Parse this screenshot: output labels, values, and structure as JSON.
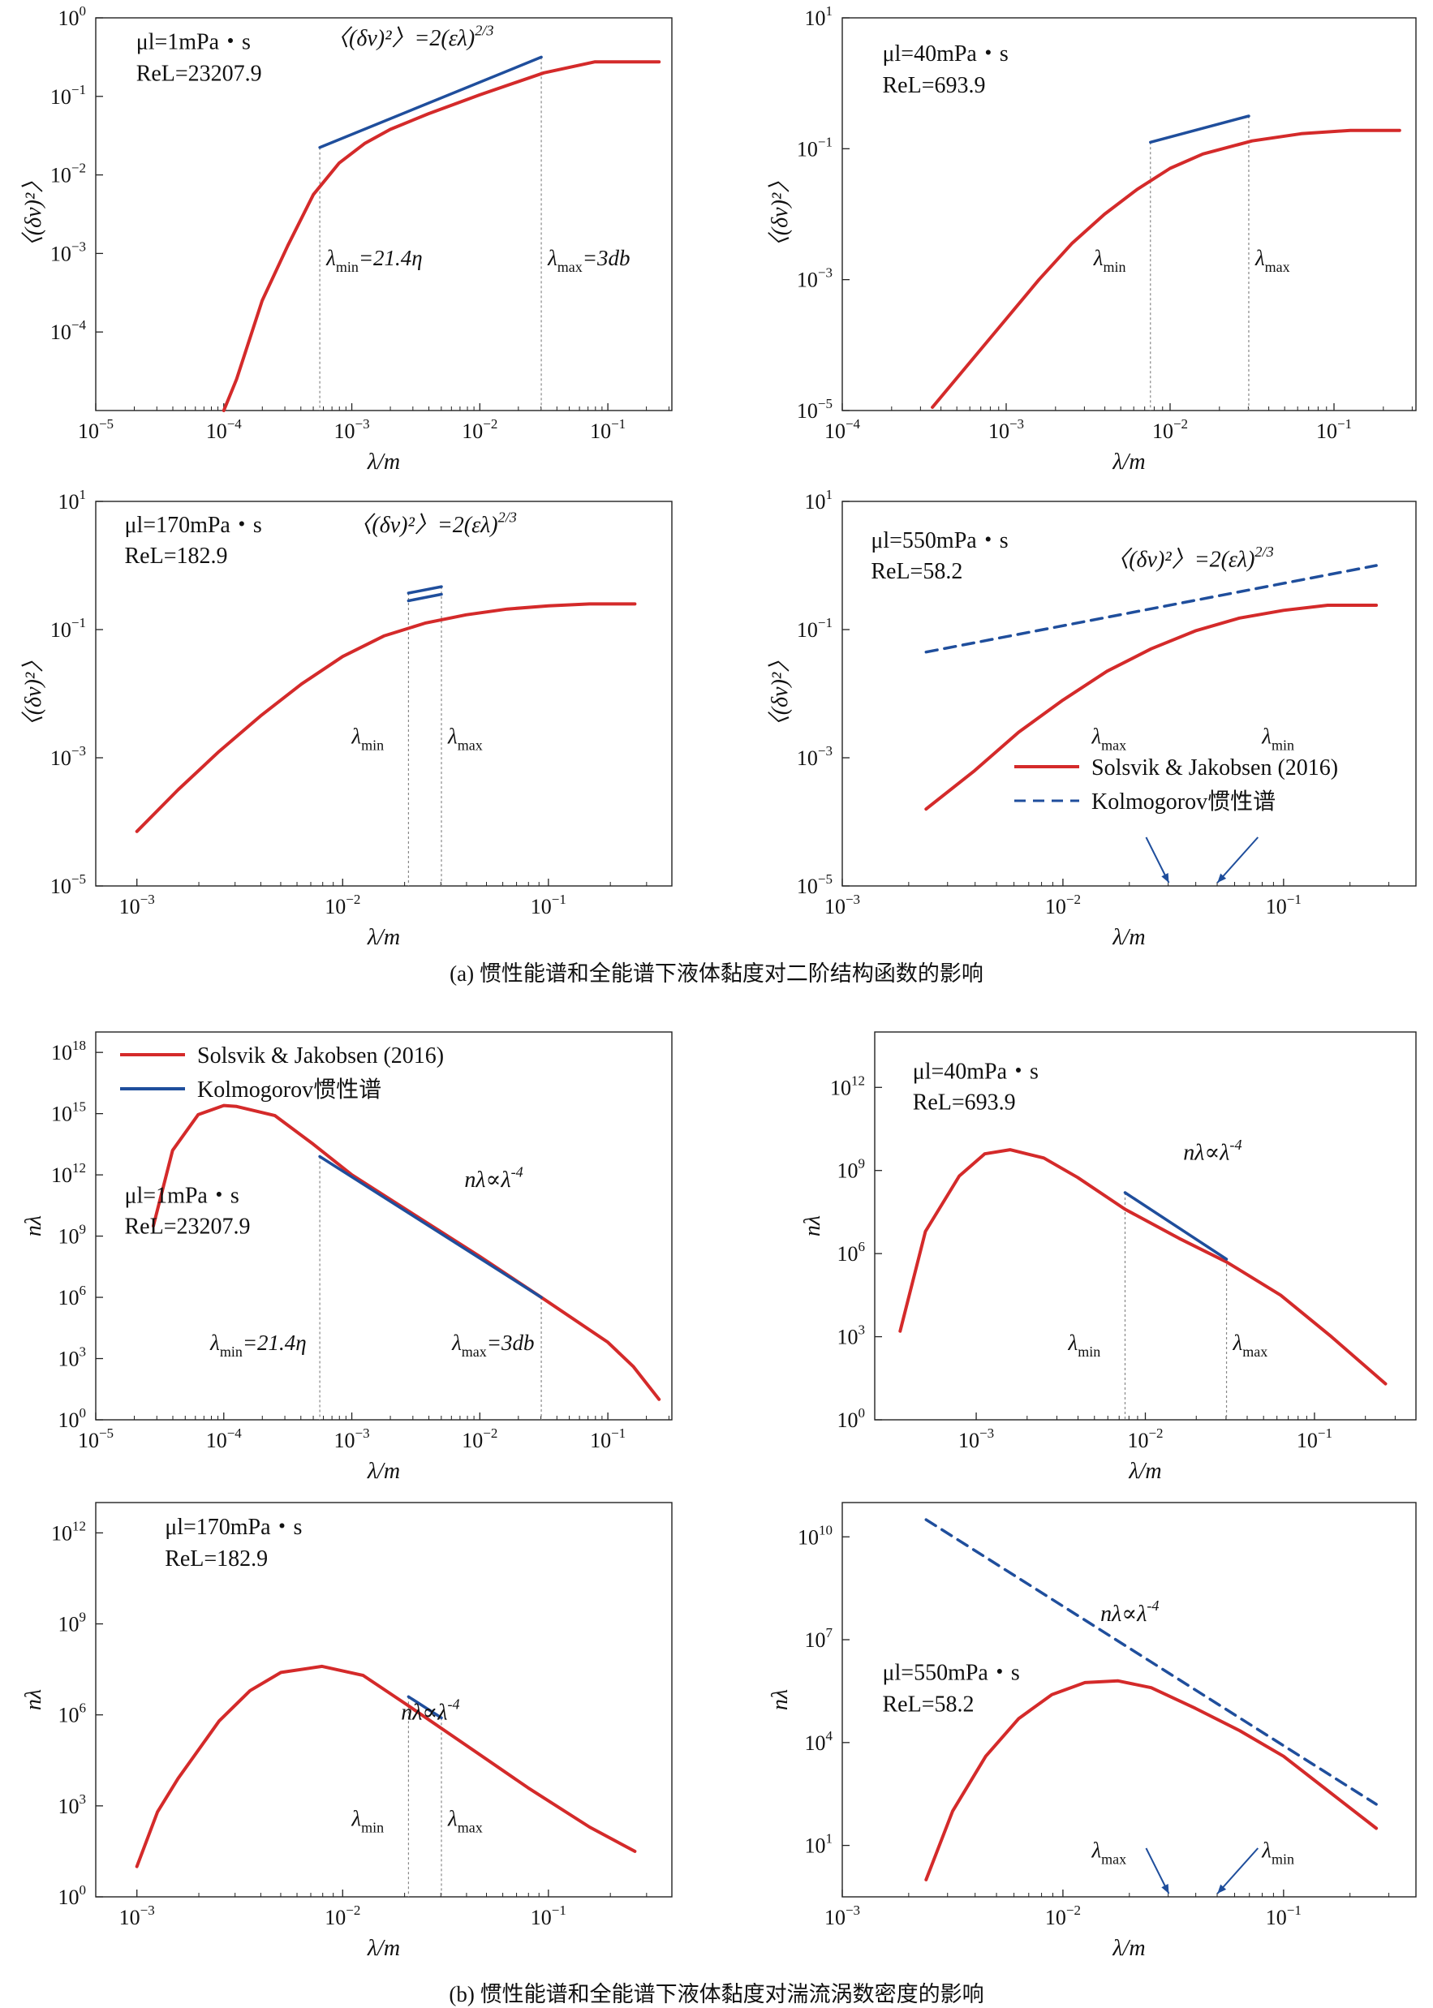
{
  "captions": {
    "a": "(a) 惯性能谱和全能谱下液体黏度对二阶结构函数的影响",
    "b": "(b) 惯性能谱和全能谱下液体黏度对湍流涡数密度的影响"
  },
  "colors": {
    "full": "#d42a2a",
    "inertial": "#1f4e9c",
    "axis": "#222222",
    "guide": "#888888"
  },
  "legend": {
    "full": "Solsvik & Jakobsen (2016)",
    "inertial": "Kolmogorov惯性谱"
  },
  "chart_data": [
    {
      "panel": "a1",
      "type": "line",
      "scale": "log-log",
      "xlabel": "λ/m",
      "ylabel": "〈(δv)²〉",
      "xlim": [
        -5,
        -0.5
      ],
      "ylim": [
        -5,
        0
      ],
      "xticks": [
        -5,
        -4,
        -3,
        -2,
        -1
      ],
      "yticks": [
        -4,
        -3,
        -2,
        -1,
        0
      ],
      "annotations": [
        "μl=1mPa・s",
        "ReL=23207.9",
        "〈(δv)²〉=2(ελ)^2/3"
      ],
      "guide_labels": [
        "λmin=21.4η",
        "λmax=3db"
      ],
      "series": [
        {
          "name": "Solsvik & Jakobsen (2016)",
          "style": "full",
          "x": [
            -4.0,
            -3.9,
            -3.7,
            -3.5,
            -3.3,
            -3.1,
            -2.9,
            -2.7,
            -2.4,
            -2.0,
            -1.5,
            -1.1,
            -0.8,
            -0.6
          ],
          "y": [
            -5.0,
            -4.6,
            -3.6,
            -2.9,
            -2.25,
            -1.85,
            -1.6,
            -1.42,
            -1.22,
            -0.98,
            -0.7,
            -0.56,
            -0.56,
            -0.56
          ]
        },
        {
          "name": "Kolmogorov惯性谱",
          "style": "inertial",
          "x": [
            -3.25,
            -1.52
          ],
          "y": [
            -1.65,
            -0.5
          ]
        }
      ],
      "guides": [
        -3.25,
        -1.52
      ]
    },
    {
      "panel": "a2",
      "type": "line",
      "scale": "log-log",
      "xlabel": "λ/m",
      "ylabel": "〈(δv)²〉",
      "xlim": [
        -4,
        -0.5
      ],
      "ylim": [
        -5,
        1
      ],
      "xticks": [
        -4,
        -3,
        -2,
        -1
      ],
      "yticks": [
        -5,
        -3,
        -1,
        1
      ],
      "annotations": [
        "μl=40mPa・s",
        "ReL=693.9"
      ],
      "guide_labels": [
        "λmin",
        "λmax"
      ],
      "series": [
        {
          "name": "Solsvik & Jakobsen (2016)",
          "style": "full",
          "x": [
            -3.45,
            -3.2,
            -3.0,
            -2.8,
            -2.6,
            -2.4,
            -2.2,
            -2.0,
            -1.8,
            -1.5,
            -1.2,
            -0.9,
            -0.6
          ],
          "y": [
            -4.95,
            -4.2,
            -3.6,
            -3.0,
            -2.45,
            -2.0,
            -1.62,
            -1.3,
            -1.08,
            -0.88,
            -0.77,
            -0.72,
            -0.72
          ]
        },
        {
          "name": "Kolmogorov惯性谱",
          "style": "inertial",
          "x": [
            -2.12,
            -1.52
          ],
          "y": [
            -0.9,
            -0.5
          ]
        }
      ],
      "guides": [
        -2.12,
        -1.52
      ]
    },
    {
      "panel": "a3",
      "type": "line",
      "scale": "log-log",
      "xlabel": "λ/m",
      "ylabel": "〈(δv)²〉",
      "xlim": [
        -3.2,
        -0.4
      ],
      "ylim": [
        -5,
        1
      ],
      "xticks": [
        -3,
        -2,
        -1
      ],
      "yticks": [
        -5,
        -3,
        -1,
        1
      ],
      "annotations": [
        "μl=170mPa・s",
        "ReL=182.9",
        "〈(δv)²〉=2(ελ)^2/3"
      ],
      "guide_labels": [
        "λmin",
        "λmax"
      ],
      "series": [
        {
          "name": "Solsvik & Jakobsen (2016)",
          "style": "full",
          "x": [
            -3.0,
            -2.8,
            -2.6,
            -2.4,
            -2.2,
            -2.0,
            -1.8,
            -1.6,
            -1.4,
            -1.2,
            -1.0,
            -0.8,
            -0.58
          ],
          "y": [
            -4.15,
            -3.5,
            -2.9,
            -2.35,
            -1.85,
            -1.42,
            -1.1,
            -0.9,
            -0.77,
            -0.68,
            -0.63,
            -0.6,
            -0.6
          ]
        },
        {
          "name": "Kolmogorov惯性谱",
          "style": "inertial",
          "x": [
            -1.68,
            -1.52
          ],
          "y": [
            -0.43,
            -0.33
          ]
        },
        {
          "name": "Kolmogorov惯性谱",
          "style": "inertial",
          "x": [
            -1.68,
            -1.52
          ],
          "y": [
            -0.55,
            -0.45
          ]
        }
      ],
      "guides": [
        -1.68,
        -1.52
      ]
    },
    {
      "panel": "a4",
      "type": "line",
      "scale": "log-log",
      "xlabel": "λ/m",
      "ylabel": "〈(δv)²〉",
      "xlim": [
        -3,
        -0.4
      ],
      "ylim": [
        -5,
        1
      ],
      "xticks": [
        -3,
        -2,
        -1
      ],
      "yticks": [
        -5,
        -3,
        -1,
        1
      ],
      "annotations": [
        "μl=550mPa・s",
        "ReL=58.2",
        "〈(δv)²〉=2(ελ)^2/3"
      ],
      "guide_labels": [
        "λmax",
        "λmin"
      ],
      "series": [
        {
          "name": "Solsvik & Jakobsen (2016)",
          "style": "full",
          "x": [
            -2.62,
            -2.4,
            -2.2,
            -2.0,
            -1.8,
            -1.6,
            -1.4,
            -1.2,
            -1.0,
            -0.8,
            -0.58
          ],
          "y": [
            -3.8,
            -3.2,
            -2.6,
            -2.1,
            -1.65,
            -1.3,
            -1.02,
            -0.82,
            -0.7,
            -0.62,
            -0.62
          ]
        },
        {
          "name": "Kolmogorov惯性谱",
          "style": "inertial-dashed",
          "x": [
            -2.62,
            -0.58
          ],
          "y": [
            -1.35,
            0.0
          ]
        }
      ],
      "arrows": [
        -1.52,
        -1.3
      ]
    },
    {
      "panel": "b1",
      "type": "line",
      "scale": "log-log",
      "xlabel": "λ/m",
      "ylabel": "nλ",
      "xlim": [
        -5,
        -0.5
      ],
      "ylim": [
        0,
        19
      ],
      "xticks": [
        -5,
        -4,
        -3,
        -2,
        -1
      ],
      "yticks": [
        0,
        3,
        6,
        9,
        12,
        15,
        18
      ],
      "annotations": [
        "μl=1mPa・s",
        "ReL=23207.9",
        "nλ∝λ^-4"
      ],
      "guide_labels": [
        "λmin=21.4η",
        "λmax=3db"
      ],
      "series": [
        {
          "name": "Solsvik & Jakobsen (2016)",
          "style": "full",
          "x": [
            -4.55,
            -4.4,
            -4.2,
            -4.0,
            -3.9,
            -3.6,
            -3.3,
            -3.0,
            -2.5,
            -2.0,
            -1.52,
            -1.0,
            -0.8,
            -0.6
          ],
          "y": [
            9.5,
            13.2,
            14.95,
            15.4,
            15.35,
            14.9,
            13.5,
            12.0,
            10.0,
            8.0,
            6.0,
            3.8,
            2.6,
            1.0
          ]
        },
        {
          "name": "Kolmogorov惯性谱",
          "style": "inertial",
          "x": [
            -3.25,
            -1.52
          ],
          "y": [
            12.9,
            6.0
          ]
        }
      ],
      "guides": [
        -3.25,
        -1.52
      ]
    },
    {
      "panel": "b2",
      "type": "line",
      "scale": "log-log",
      "xlabel": "λ/m",
      "ylabel": "nλ",
      "xlim": [
        -3.6,
        -0.4
      ],
      "ylim": [
        0,
        14
      ],
      "xticks": [
        -3,
        -2,
        -1
      ],
      "yticks": [
        0,
        3,
        6,
        9,
        12
      ],
      "annotations": [
        "μl=40mPa・s",
        "ReL=693.9",
        "nλ∝λ^-4"
      ],
      "guide_labels": [
        "λmin",
        "λmax"
      ],
      "series": [
        {
          "name": "Solsvik & Jakobsen (2016)",
          "style": "full",
          "x": [
            -3.45,
            -3.3,
            -3.1,
            -2.95,
            -2.8,
            -2.6,
            -2.4,
            -2.12,
            -1.8,
            -1.52,
            -1.2,
            -0.9,
            -0.58
          ],
          "y": [
            3.2,
            6.8,
            8.8,
            9.6,
            9.75,
            9.45,
            8.75,
            7.6,
            6.55,
            5.7,
            4.5,
            3.0,
            1.3
          ]
        },
        {
          "name": "Kolmogorov惯性谱",
          "style": "inertial",
          "x": [
            -2.12,
            -1.52
          ],
          "y": [
            8.2,
            5.8
          ]
        }
      ],
      "guides": [
        -2.12,
        -1.52
      ]
    },
    {
      "panel": "b3",
      "type": "line",
      "scale": "log-log",
      "xlabel": "λ/m",
      "ylabel": "nλ",
      "xlim": [
        -3.2,
        -0.4
      ],
      "ylim": [
        0,
        13
      ],
      "xticks": [
        -3,
        -2,
        -1
      ],
      "yticks": [
        0,
        3,
        6,
        9,
        12
      ],
      "annotations": [
        "μl=170mPa・s",
        "ReL=182.9",
        "nλ∝λ^-4"
      ],
      "guide_labels": [
        "λmin",
        "λmax"
      ],
      "series": [
        {
          "name": "Solsvik & Jakobsen (2016)",
          "style": "full",
          "x": [
            -3.0,
            -2.9,
            -2.8,
            -2.6,
            -2.45,
            -2.3,
            -2.1,
            -1.9,
            -1.68,
            -1.4,
            -1.1,
            -0.8,
            -0.58
          ],
          "y": [
            1.0,
            2.8,
            3.9,
            5.8,
            6.8,
            7.4,
            7.6,
            7.3,
            6.3,
            5.0,
            3.6,
            2.3,
            1.5
          ]
        },
        {
          "name": "Kolmogorov惯性谱",
          "style": "inertial",
          "x": [
            -1.68,
            -1.52
          ],
          "y": [
            6.6,
            5.9
          ]
        }
      ],
      "guides": [
        -1.68,
        -1.52
      ]
    },
    {
      "panel": "b4",
      "type": "line",
      "scale": "log-log",
      "xlabel": "λ/m",
      "ylabel": "nλ",
      "xlim": [
        -3,
        -0.4
      ],
      "ylim": [
        -0.5,
        11
      ],
      "xticks": [
        -3,
        -2,
        -1
      ],
      "yticks": [
        1,
        4,
        7,
        10
      ],
      "annotations": [
        "μl=550mPa・s",
        "ReL=58.2",
        "nλ∝λ^-4"
      ],
      "guide_labels": [
        "λmax",
        "λmin"
      ],
      "series": [
        {
          "name": "Solsvik & Jakobsen (2016)",
          "style": "full",
          "x": [
            -2.62,
            -2.5,
            -2.35,
            -2.2,
            -2.05,
            -1.9,
            -1.75,
            -1.6,
            -1.4,
            -1.2,
            -1.0,
            -0.8,
            -0.58
          ],
          "y": [
            0.0,
            2.0,
            3.6,
            4.7,
            5.4,
            5.75,
            5.8,
            5.6,
            5.0,
            4.35,
            3.6,
            2.6,
            1.5
          ]
        },
        {
          "name": "Kolmogorov惯性谱",
          "style": "inertial-dashed",
          "x": [
            -2.62,
            -0.58
          ],
          "y": [
            10.5,
            2.2
          ]
        }
      ],
      "arrows": [
        -1.52,
        -1.3
      ]
    }
  ]
}
